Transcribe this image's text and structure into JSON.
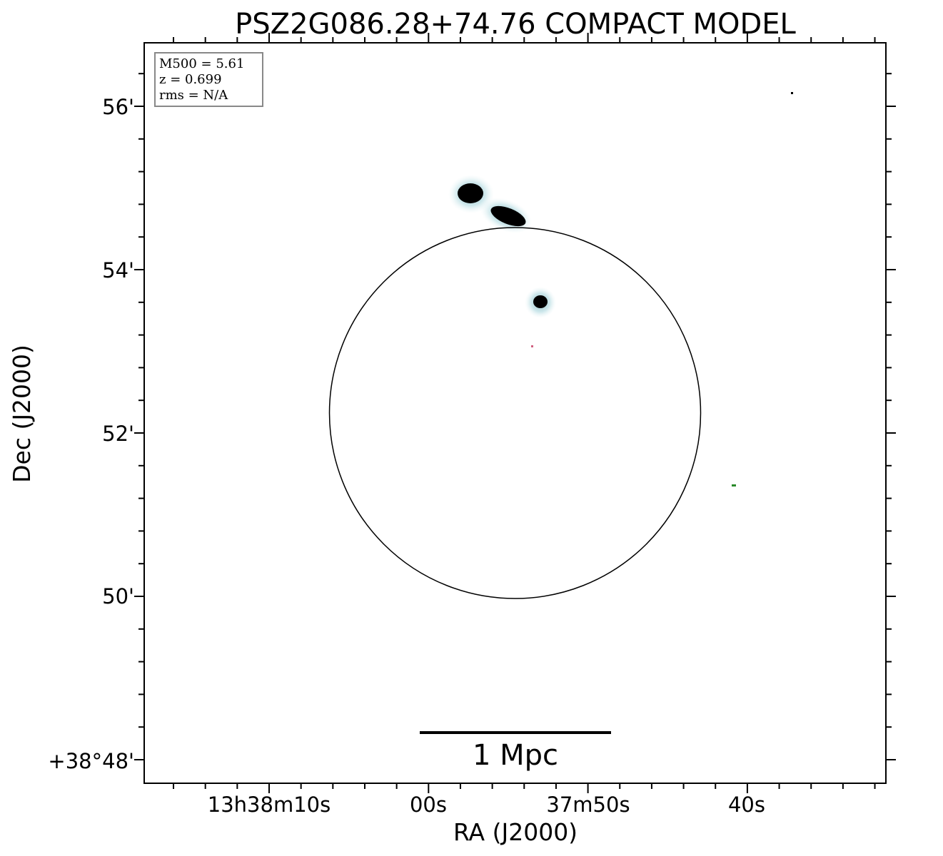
{
  "chart_data": {
    "type": "image",
    "title": "PSZ2G086.28+74.76 COMPACT MODEL",
    "xlabel": "RA (J2000)",
    "ylabel": "Dec (J2000)",
    "x_ticks": [
      "13h38m10s",
      "00s",
      "37m50s",
      "40s"
    ],
    "y_ticks": [
      "56'",
      "54'",
      "52'",
      "50'",
      "+38°48'"
    ],
    "info_box": [
      "M500 = 5.61",
      "z = 0.699",
      "rms = N/A"
    ],
    "scalebar_label": "1 Mpc",
    "colors": {
      "source": "#000000",
      "halo": "#b8dde3",
      "red_dot": "#d06080",
      "green_dot": "#2a8a2a",
      "circle": "#000000"
    }
  }
}
